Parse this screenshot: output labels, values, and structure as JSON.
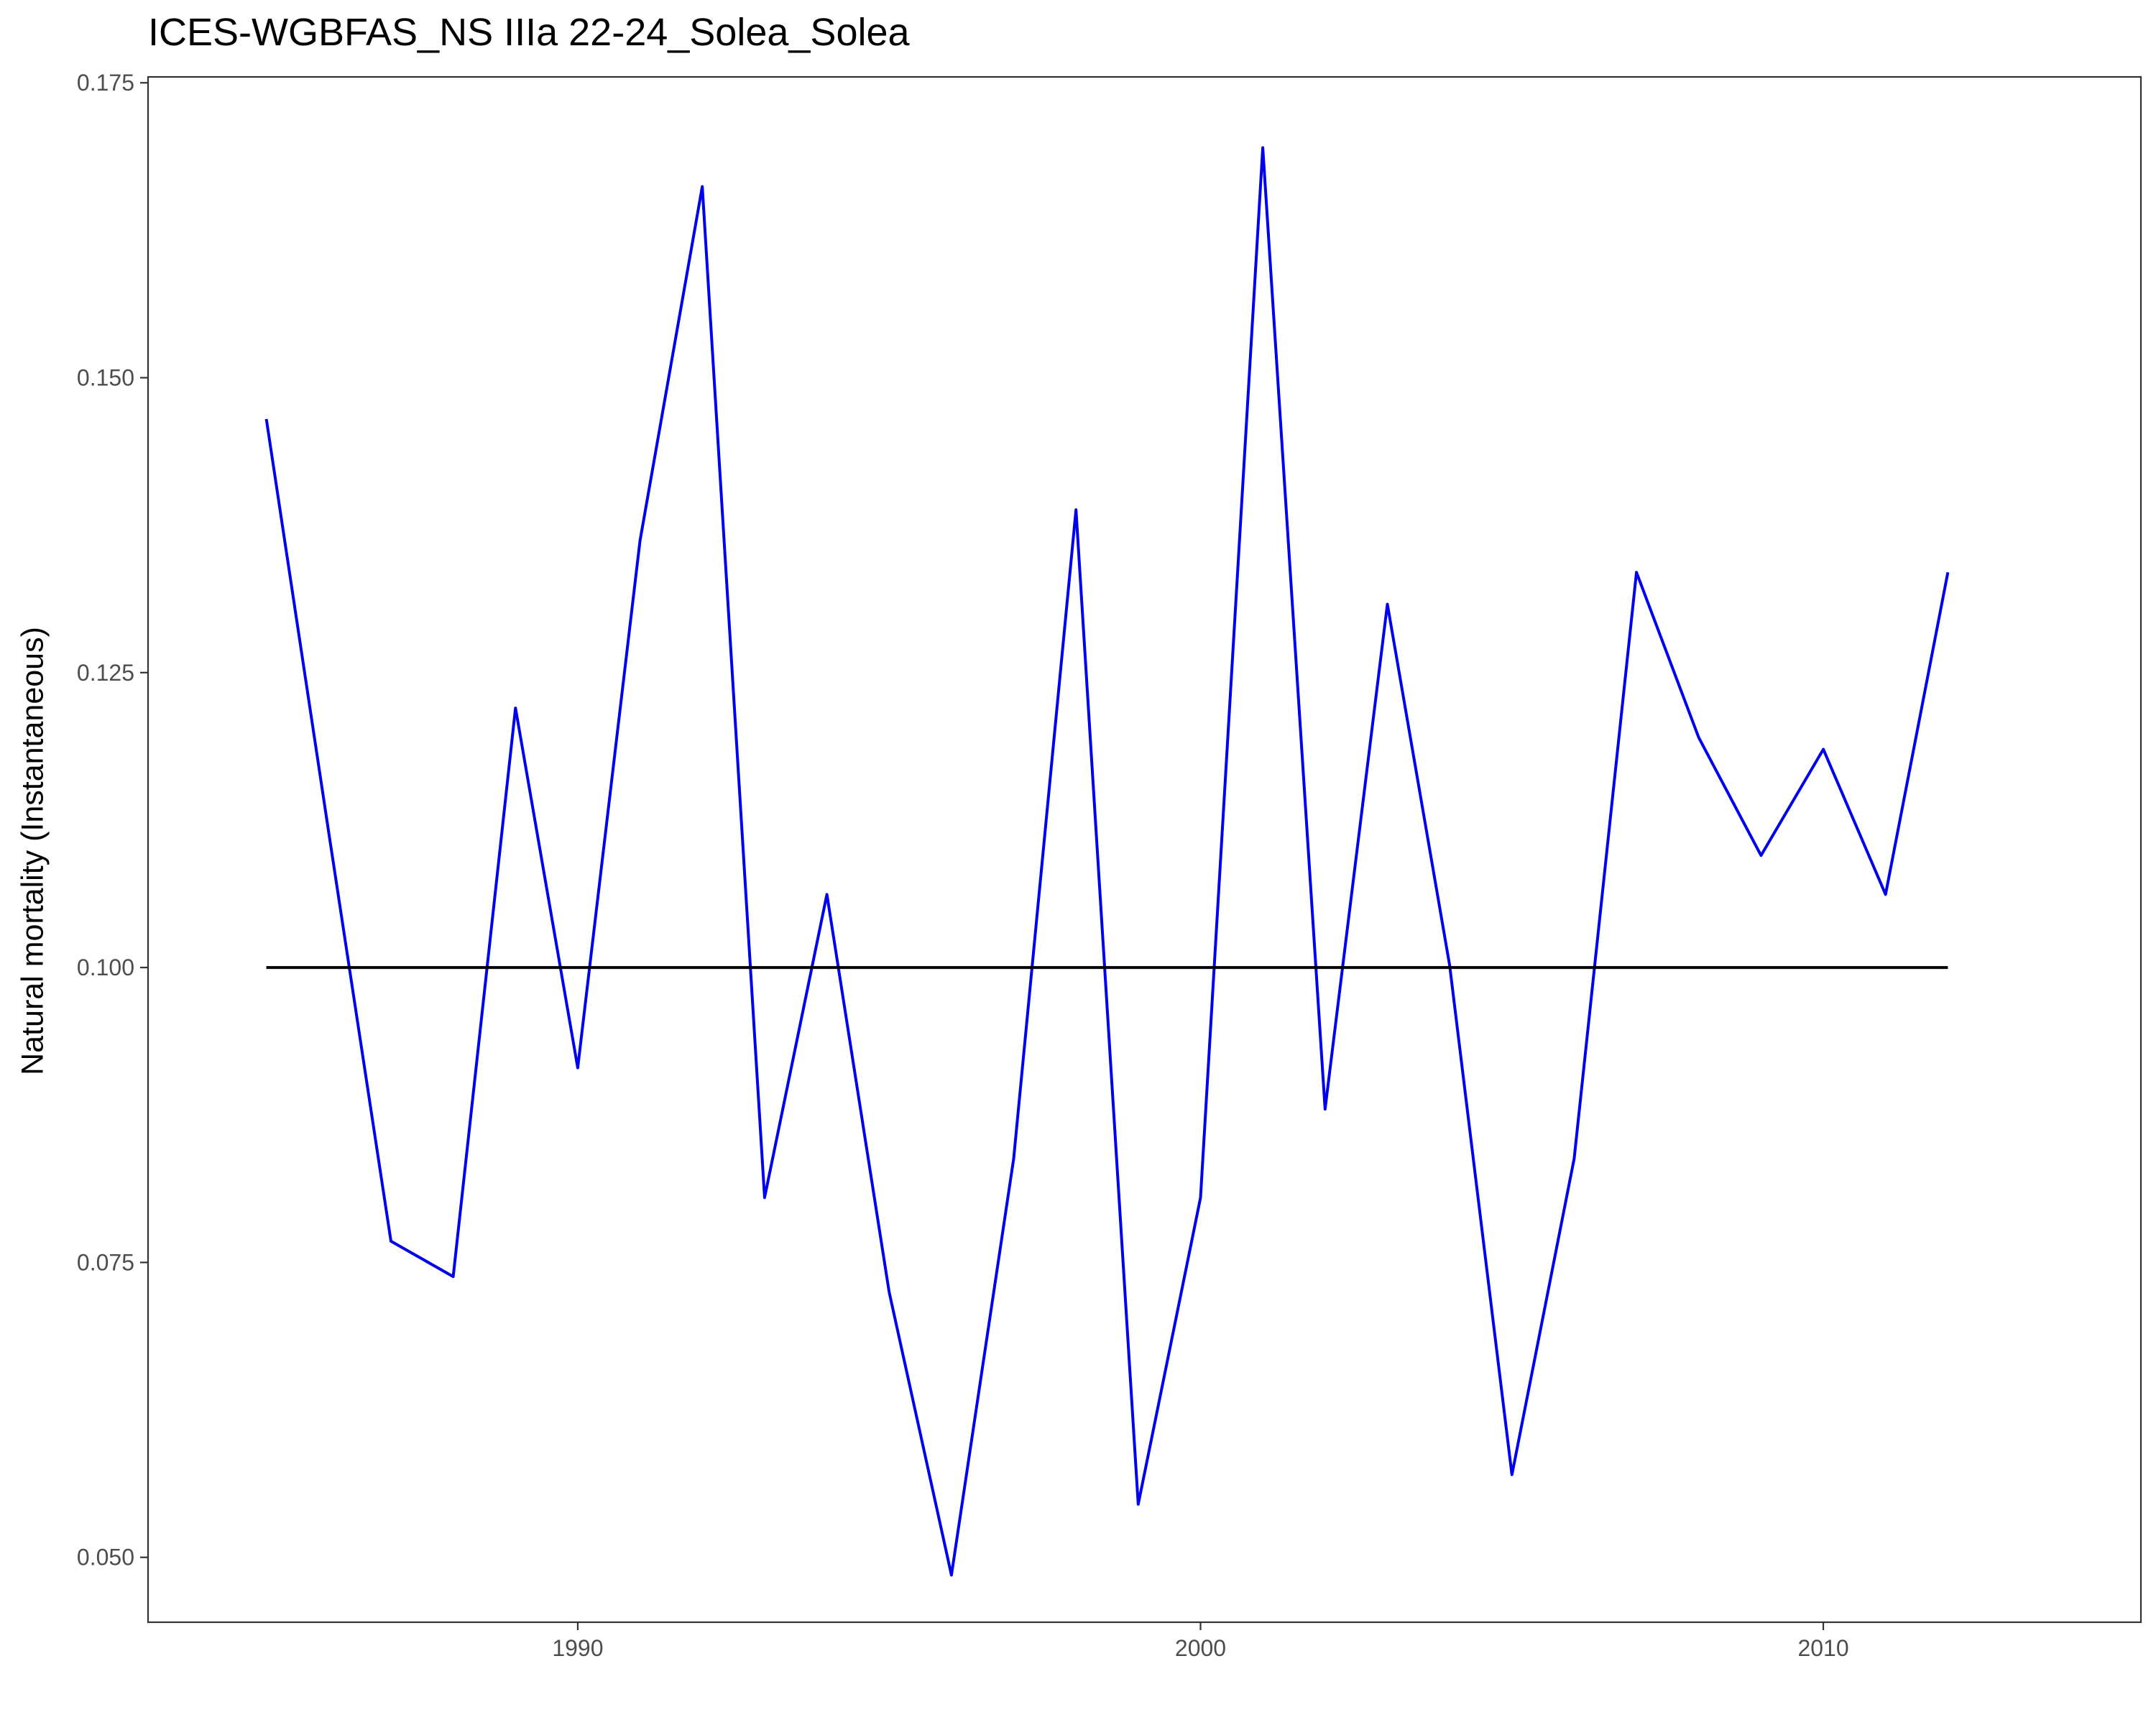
{
  "chart_data": {
    "type": "line",
    "title": "ICES-WGBFAS_NS IIIa 22-24_Solea_Solea",
    "xlabel": "",
    "ylabel": "Natural mortality (Instantaneous)",
    "xlim": [
      1983.1,
      2015.1
    ],
    "ylim": [
      0.0445,
      0.1755
    ],
    "x_ticks": [
      1990,
      2000,
      2010
    ],
    "y_ticks": [
      0.05,
      0.075,
      0.1,
      0.125,
      0.15,
      0.175
    ],
    "y_tick_labels": [
      "0.050",
      "0.075",
      "0.100",
      "0.125",
      "0.150",
      "0.175"
    ],
    "grid": false,
    "series": [
      {
        "color": "#0000ee",
        "x": [
          1985,
          1986,
          1987,
          1988,
          1989,
          1990,
          1991,
          1992,
          1993,
          1994,
          1995,
          1996,
          1997,
          1998,
          1999,
          2000,
          2001,
          2002,
          2003,
          2004,
          2005,
          2006,
          2007,
          2008,
          2009,
          2010,
          2011,
          2012
        ],
        "y": [
          0.1465,
          0.1115,
          0.0768,
          0.0738,
          0.122,
          0.0915,
          0.1362,
          0.1662,
          0.0805,
          0.1062,
          0.0725,
          0.0485,
          0.0838,
          0.1388,
          0.0545,
          0.0805,
          0.1695,
          0.088,
          0.1308,
          0.1002,
          0.057,
          0.0838,
          0.1335,
          0.1195,
          0.1095,
          0.1185,
          0.1062,
          0.1335
        ]
      },
      {
        "color": "#000000",
        "x": [
          1985,
          2012
        ],
        "y": [
          0.1,
          0.1
        ]
      }
    ]
  }
}
